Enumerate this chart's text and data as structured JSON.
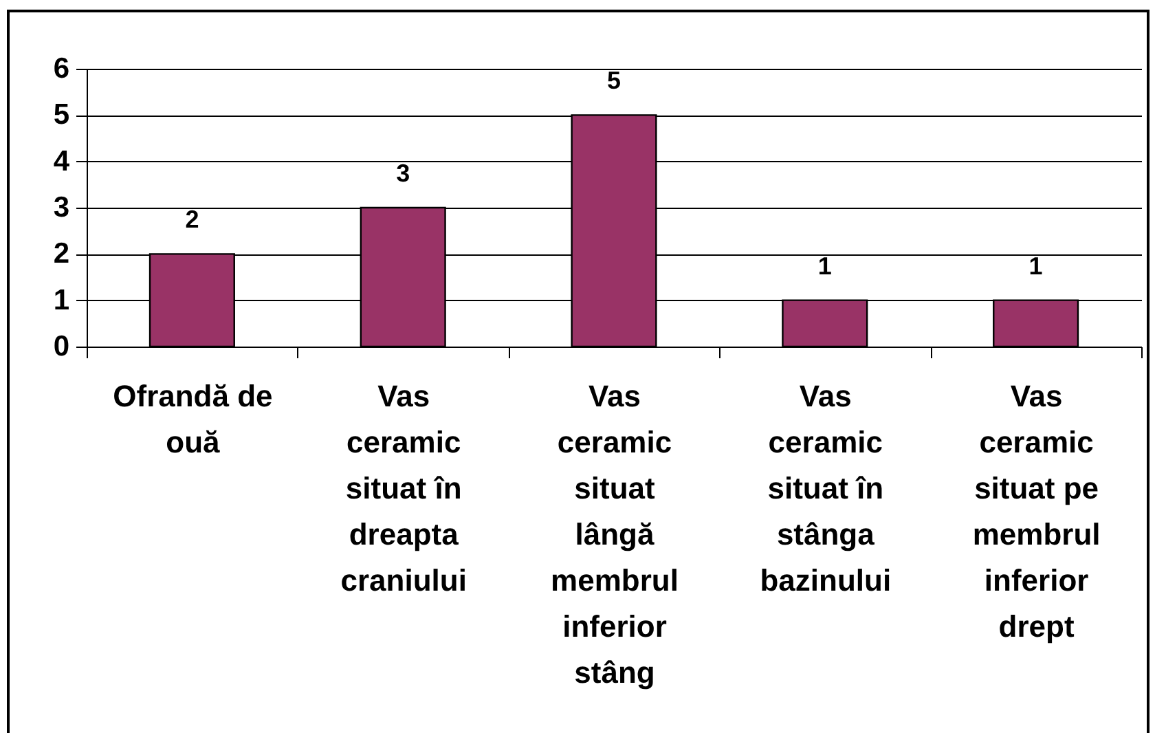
{
  "chart_data": {
    "type": "bar",
    "categories": [
      "Ofrandă de ouă",
      "Vas ceramic situat în dreapta craniului",
      "Vas ceramic situat lângă membrul inferior stâng",
      "Vas ceramic situat în stânga bazinului",
      "Vas ceramic situat pe membrul inferior drept"
    ],
    "values": [
      2,
      3,
      5,
      1,
      1
    ],
    "color": "#993366",
    "ylim": [
      0,
      6
    ],
    "yticks": [
      0,
      1,
      2,
      3,
      4,
      5,
      6
    ],
    "grid": "y",
    "data_labels": true
  }
}
